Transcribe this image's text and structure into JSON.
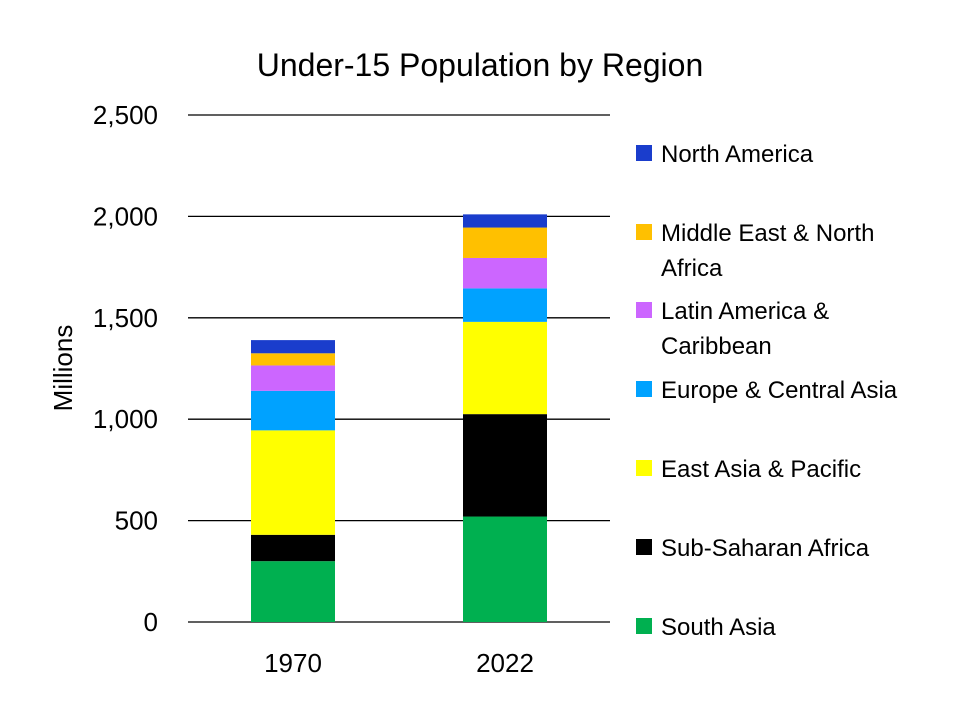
{
  "chart_data": {
    "type": "bar",
    "stacked": true,
    "title": "Under-15 Population by Region",
    "xlabel": "",
    "ylabel": "Millions",
    "ylim": [
      0,
      2500
    ],
    "yticks": [
      0,
      500,
      1000,
      1500,
      2000,
      2500
    ],
    "ytick_labels": [
      "0",
      "500",
      "1,000",
      "1,500",
      "2,000",
      "2,500"
    ],
    "grid": true,
    "legend_position": "right",
    "categories": [
      "1970",
      "2022"
    ],
    "series": [
      {
        "name": "South Asia",
        "color": "#00B050",
        "values": [
          300,
          520
        ]
      },
      {
        "name": "Sub-Saharan Africa",
        "color": "#000000",
        "values": [
          130,
          505
        ]
      },
      {
        "name": "East Asia & Pacific",
        "color": "#FFFF00",
        "values": [
          515,
          455
        ]
      },
      {
        "name": "Europe & Central Asia",
        "color": "#00A2FF",
        "values": [
          195,
          165
        ]
      },
      {
        "name": "Latin America & Caribbean",
        "color": "#CC66FF",
        "values": [
          125,
          150
        ]
      },
      {
        "name": "Middle East & North Africa",
        "color": "#FFC000",
        "values": [
          60,
          150
        ]
      },
      {
        "name": "North America",
        "color": "#1A3DCC",
        "values": [
          65,
          65
        ]
      }
    ]
  }
}
